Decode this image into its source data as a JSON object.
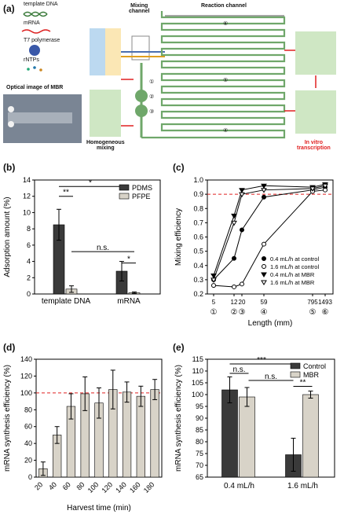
{
  "panels": {
    "a": "(a)",
    "b": "(b)",
    "c": "(c)",
    "d": "(d)",
    "e": "(e)"
  },
  "panel_a": {
    "legend": [
      "template DNA",
      "mRNA",
      "T7 polymerase",
      "rNTPs"
    ],
    "mixing_channel": "Mixing\nchannel",
    "reaction_channel": "Reaction channel",
    "optical_image": "Optical image of MBR",
    "homogeneous": "Homogeneous\nmixing",
    "in_vitro": "In vitro\ntranscription",
    "markers": [
      "①",
      "②",
      "③",
      "④",
      "⑤",
      "⑥"
    ],
    "colors": {
      "inlet_blue": "#bcd9f0",
      "inlet_yellow": "#fbe7b5",
      "reaction_green": "#cfe7c4",
      "channel_green": "#6fa76a",
      "accent_red": "#e02020"
    }
  },
  "chart_data": [
    {
      "id": "b",
      "type": "bar",
      "ylabel": "Adsorption amount (%)",
      "ylim": [
        0,
        14
      ],
      "yticks": [
        0,
        2,
        4,
        6,
        8,
        10,
        12,
        14
      ],
      "categories": [
        "template DNA",
        "mRNA"
      ],
      "series": [
        {
          "name": "PDMS",
          "values": [
            8.5,
            2.8
          ],
          "errors": [
            1.9,
            1.2
          ],
          "color": "#3a3a3a"
        },
        {
          "name": "PFPE",
          "values": [
            0.6,
            0.15
          ],
          "errors": [
            0.4,
            0.1
          ],
          "color": "#d8d3c8"
        }
      ],
      "legend_position": "top-right",
      "significance": [
        "**",
        "*",
        "n.s.",
        "*"
      ]
    },
    {
      "id": "c",
      "type": "line",
      "ylabel": "Mixing efficiency",
      "xlabel": "Length (mm)",
      "ylim": [
        0.2,
        1.0
      ],
      "yticks": [
        "0.2",
        "0.3",
        "0.4",
        "0.5",
        "0.6",
        "0.7",
        "0.8",
        "0.9",
        "1.0"
      ],
      "x_tick_labels": [
        "5",
        "12",
        "20",
        "59",
        "795",
        "1493"
      ],
      "x_markers": [
        "①",
        "②",
        "③",
        "④",
        "⑤",
        "⑥"
      ],
      "threshold": 0.9,
      "series": [
        {
          "name": "0.4 mL/h at control",
          "x": [
            5,
            12,
            20,
            59,
            795,
            1493
          ],
          "y": [
            0.3,
            0.45,
            0.65,
            0.88,
            0.93,
            0.95
          ]
        },
        {
          "name": "1.6 mL/h at control",
          "x": [
            5,
            12,
            20,
            59,
            795,
            1493
          ],
          "y": [
            0.26,
            0.25,
            0.27,
            0.55,
            0.92,
            0.93
          ]
        },
        {
          "name": "0.4 mL/h at MBR",
          "x": [
            5,
            12,
            20,
            59,
            795,
            1493
          ],
          "y": [
            0.33,
            0.75,
            0.93,
            0.96,
            0.95,
            0.97
          ]
        },
        {
          "name": "1.6 mL/h at MBR",
          "x": [
            5,
            12,
            20,
            59,
            795,
            1493
          ],
          "y": [
            0.3,
            0.7,
            0.9,
            0.93,
            0.94,
            0.96
          ]
        }
      ],
      "legend_position": "bottom-right"
    },
    {
      "id": "d",
      "type": "bar",
      "ylabel": "mRNA synthesis efficiency (%)",
      "xlabel": "Harvest time (min)",
      "ylim": [
        0,
        140
      ],
      "yticks": [
        0,
        20,
        40,
        60,
        80,
        100,
        120,
        140
      ],
      "categories": [
        "20",
        "40",
        "60",
        "80",
        "100",
        "120",
        "140",
        "160",
        "180"
      ],
      "values": [
        10,
        50,
        84,
        99,
        88,
        104,
        101,
        96,
        104
      ],
      "errors": [
        8,
        10,
        15,
        20,
        18,
        23,
        12,
        12,
        12
      ],
      "color": "#d8d3c8",
      "threshold": 100
    },
    {
      "id": "e",
      "type": "bar",
      "ylabel": "mRNA synthesis efficiency (%)",
      "ylim": [
        65,
        115
      ],
      "yticks": [
        65,
        70,
        75,
        80,
        85,
        90,
        95,
        100,
        105,
        110,
        115
      ],
      "categories": [
        "0.4 mL/h",
        "1.6 mL/h"
      ],
      "series": [
        {
          "name": "Control",
          "values": [
            102,
            74.5
          ],
          "errors": [
            5.5,
            7
          ],
          "color": "#3a3a3a"
        },
        {
          "name": "MBR",
          "values": [
            99,
            100
          ],
          "errors": [
            4,
            1.5
          ],
          "color": "#d8d3c8"
        }
      ],
      "legend_position": "top-right",
      "significance": [
        "***",
        "n.s.",
        "n.s.",
        "**"
      ]
    }
  ]
}
